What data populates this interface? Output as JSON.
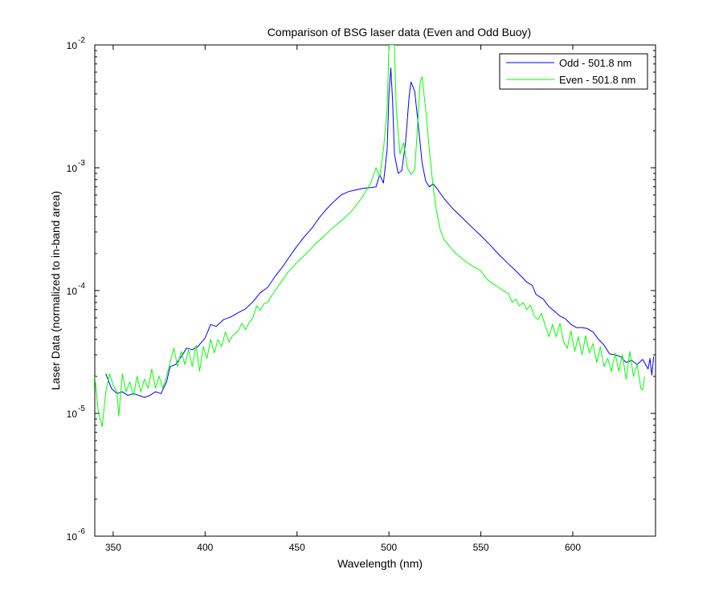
{
  "chart_data": {
    "type": "line",
    "title": "Comparison of BSG laser data (Even and Odd Buoy)",
    "xlabel": "Wavelength (nm)",
    "ylabel": "Laser Data (normalized to in-band area)",
    "xlim": [
      340,
      645
    ],
    "ylim": [
      1e-06,
      0.01
    ],
    "yscale": "log",
    "x_ticks": [
      350,
      400,
      450,
      500,
      550,
      600
    ],
    "y_ticks": [
      {
        "value": 1e-06,
        "base": "10",
        "exp": "-6"
      },
      {
        "value": 1e-05,
        "base": "10",
        "exp": "-5"
      },
      {
        "value": 0.0001,
        "base": "10",
        "exp": "-4"
      },
      {
        "value": 0.001,
        "base": "10",
        "exp": "-3"
      },
      {
        "value": 0.01,
        "base": "10",
        "exp": "-2"
      }
    ],
    "legend_position": "top-right",
    "series": [
      {
        "name": "Odd - 501.8 nm",
        "color": "#0000ff",
        "points": [
          [
            346,
            2.1e-05
          ],
          [
            349,
            1.6e-05
          ],
          [
            352,
            1.45e-05
          ],
          [
            355,
            1.5e-05
          ],
          [
            358,
            1.4e-05
          ],
          [
            361,
            1.45e-05
          ],
          [
            364,
            1.4e-05
          ],
          [
            367,
            1.35e-05
          ],
          [
            370,
            1.4e-05
          ],
          [
            373,
            1.5e-05
          ],
          [
            376,
            1.45e-05
          ],
          [
            379,
            1.8e-05
          ],
          [
            381,
            2.4e-05
          ],
          [
            384,
            2.5e-05
          ],
          [
            387,
            2.9e-05
          ],
          [
            390,
            3.4e-05
          ],
          [
            393,
            3.3e-05
          ],
          [
            396,
            3.5e-05
          ],
          [
            400,
            4.1e-05
          ],
          [
            403,
            5.3e-05
          ],
          [
            406,
            5.1e-05
          ],
          [
            410,
            5.8e-05
          ],
          [
            414,
            6.1e-05
          ],
          [
            418,
            6.6e-05
          ],
          [
            422,
            7.1e-05
          ],
          [
            426,
            8.1e-05
          ],
          [
            430,
            9.6e-05
          ],
          [
            434,
            0.000106
          ],
          [
            438,
            0.00013
          ],
          [
            442,
            0.000155
          ],
          [
            446,
            0.00019
          ],
          [
            450,
            0.00023
          ],
          [
            454,
            0.000275
          ],
          [
            458,
            0.00032
          ],
          [
            462,
            0.00039
          ],
          [
            466,
            0.00046
          ],
          [
            470,
            0.00053
          ],
          [
            474,
            0.0006
          ],
          [
            478,
            0.00064
          ],
          [
            482,
            0.00066
          ],
          [
            486,
            0.00068
          ],
          [
            490,
            0.00069
          ],
          [
            493,
            0.0007
          ],
          [
            495,
            0.00088
          ],
          [
            497,
            0.00075
          ],
          [
            499,
            0.0014
          ],
          [
            500,
            0.004
          ],
          [
            501,
            0.0065
          ],
          [
            502,
            0.0035
          ],
          [
            503,
            0.0013
          ],
          [
            505,
            0.0009
          ],
          [
            507,
            0.00095
          ],
          [
            509,
            0.0016
          ],
          [
            511,
            0.0038
          ],
          [
            512,
            0.005
          ],
          [
            514,
            0.0042
          ],
          [
            516,
            0.0022
          ],
          [
            518,
            0.0011
          ],
          [
            520,
            0.00078
          ],
          [
            522,
            0.0007
          ],
          [
            524,
            0.00074
          ],
          [
            526,
            0.00068
          ],
          [
            530,
            0.00056
          ],
          [
            535,
            0.00046
          ],
          [
            540,
            0.00039
          ],
          [
            545,
            0.00033
          ],
          [
            550,
            0.00028
          ],
          [
            555,
            0.000235
          ],
          [
            560,
            0.000195
          ],
          [
            565,
            0.000165
          ],
          [
            570,
            0.00014
          ],
          [
            575,
            0.000117
          ],
          [
            578,
            0.00011
          ],
          [
            580,
            9.3e-05
          ],
          [
            584,
            8.5e-05
          ],
          [
            587,
            7.4e-05
          ],
          [
            590,
            6.8e-05
          ],
          [
            593,
            6.2e-05
          ],
          [
            596,
            5.9e-05
          ],
          [
            599,
            5.3e-05
          ],
          [
            602,
            5e-05
          ],
          [
            605,
            5e-05
          ],
          [
            608,
            4.9e-05
          ],
          [
            611,
            4.6e-05
          ],
          [
            614,
            4e-05
          ],
          [
            617,
            3.6e-05
          ],
          [
            620,
            3.05e-05
          ],
          [
            623,
            3e-05
          ],
          [
            626,
            2.9e-05
          ],
          [
            629,
            2.6e-05
          ],
          [
            632,
            2.7e-05
          ],
          [
            635,
            2.5e-05
          ],
          [
            638,
            2.75e-05
          ],
          [
            641,
            2.3e-05
          ],
          [
            642,
            2.8e-05
          ],
          [
            643,
            2.05e-05
          ],
          [
            644,
            2.9e-05
          ]
        ]
      },
      {
        "name": "Even - 501.8 nm",
        "color": "#00ff00",
        "points": [
          [
            340,
            2e-05
          ],
          [
            342,
            1e-05
          ],
          [
            344,
            7.8e-06
          ],
          [
            346,
            1.5e-05
          ],
          [
            348,
            2.1e-05
          ],
          [
            350,
            1.7e-05
          ],
          [
            352,
            1.5e-05
          ],
          [
            353,
            9.5e-06
          ],
          [
            355,
            2.1e-05
          ],
          [
            357,
            1.5e-05
          ],
          [
            359,
            1.8e-05
          ],
          [
            361,
            1.4e-05
          ],
          [
            363,
            2e-05
          ],
          [
            365,
            1.5e-05
          ],
          [
            367,
            1.9e-05
          ],
          [
            369,
            1.6e-05
          ],
          [
            371,
            2.3e-05
          ],
          [
            373,
            1.6e-05
          ],
          [
            375,
            2e-05
          ],
          [
            377,
            1.6e-05
          ],
          [
            379,
            2e-05
          ],
          [
            381,
            2.6e-05
          ],
          [
            383,
            3.4e-05
          ],
          [
            385,
            2.4e-05
          ],
          [
            387,
            3.2e-05
          ],
          [
            389,
            2.5e-05
          ],
          [
            391,
            3.3e-05
          ],
          [
            393,
            2.4e-05
          ],
          [
            395,
            3.6e-05
          ],
          [
            397,
            2.2e-05
          ],
          [
            399,
            3.5e-05
          ],
          [
            401,
            2.8e-05
          ],
          [
            403,
            4e-05
          ],
          [
            405,
            3.1e-05
          ],
          [
            407,
            4e-05
          ],
          [
            409,
            3.5e-05
          ],
          [
            411,
            4.6e-05
          ],
          [
            413,
            3.8e-05
          ],
          [
            415,
            4.3e-05
          ],
          [
            418,
            4.7e-05
          ],
          [
            420,
            5.4e-05
          ],
          [
            422,
            4.8e-05
          ],
          [
            424,
            5.5e-05
          ],
          [
            426,
            6e-05
          ],
          [
            428,
            7.5e-05
          ],
          [
            430,
            6.9e-05
          ],
          [
            432,
            7.8e-05
          ],
          [
            434,
            8e-05
          ],
          [
            436,
            9e-05
          ],
          [
            440,
            0.00011
          ],
          [
            445,
            0.00014
          ],
          [
            450,
            0.00017
          ],
          [
            455,
            0.0002
          ],
          [
            460,
            0.00024
          ],
          [
            465,
            0.00028
          ],
          [
            470,
            0.00033
          ],
          [
            475,
            0.00038
          ],
          [
            480,
            0.00045
          ],
          [
            485,
            0.00056
          ],
          [
            490,
            0.00075
          ],
          [
            493,
            0.001
          ],
          [
            495,
            0.00085
          ],
          [
            497,
            0.0014
          ],
          [
            499,
            0.003
          ],
          [
            500,
            0.01
          ],
          [
            503,
            0.01
          ],
          [
            504,
            0.003
          ],
          [
            506,
            0.0013
          ],
          [
            508,
            0.0016
          ],
          [
            510,
            0.001
          ],
          [
            512,
            0.00088
          ],
          [
            514,
            0.00096
          ],
          [
            515,
            0.0016
          ],
          [
            517,
            0.005
          ],
          [
            518,
            0.0055
          ],
          [
            520,
            0.003
          ],
          [
            522,
            0.0014
          ],
          [
            524,
            0.0007
          ],
          [
            526,
            0.00043
          ],
          [
            528,
            0.00031
          ],
          [
            530,
            0.00026
          ],
          [
            535,
            0.00021
          ],
          [
            540,
            0.00018
          ],
          [
            545,
            0.00016
          ],
          [
            550,
            0.000145
          ],
          [
            553,
            0.000125
          ],
          [
            556,
            0.000115
          ],
          [
            559,
            0.000108
          ],
          [
            562,
            0.0001
          ],
          [
            565,
            9.5e-05
          ],
          [
            567,
            8e-05
          ],
          [
            569,
            8.5e-05
          ],
          [
            571,
            7.5e-05
          ],
          [
            573,
            8e-05
          ],
          [
            575,
            7e-05
          ],
          [
            577,
            7.6e-05
          ],
          [
            579,
            6.2e-05
          ],
          [
            581,
            5.8e-05
          ],
          [
            583,
            6.5e-05
          ],
          [
            585,
            5.2e-05
          ],
          [
            587,
            4.2e-05
          ],
          [
            589,
            5.3e-05
          ],
          [
            591,
            4.2e-05
          ],
          [
            593,
            5.4e-05
          ],
          [
            595,
            3.8e-05
          ],
          [
            597,
            3.4e-05
          ],
          [
            599,
            4.7e-05
          ],
          [
            601,
            3.2e-05
          ],
          [
            603,
            4.2e-05
          ],
          [
            605,
            3e-05
          ],
          [
            607,
            4.3e-05
          ],
          [
            609,
            3.1e-05
          ],
          [
            611,
            3.7e-05
          ],
          [
            613,
            2.6e-05
          ],
          [
            615,
            3.5e-05
          ],
          [
            617,
            2.4e-05
          ],
          [
            619,
            2.8e-05
          ],
          [
            621,
            2.2e-05
          ],
          [
            623,
            3.1e-05
          ],
          [
            625,
            2.2e-05
          ],
          [
            627,
            3e-05
          ],
          [
            629,
            1.9e-05
          ],
          [
            631,
            3.2e-05
          ],
          [
            633,
            2e-05
          ],
          [
            635,
            2.5e-05
          ],
          [
            637,
            1.6e-05
          ],
          [
            638,
            1.55e-05
          ],
          [
            639,
            2e-05
          ]
        ]
      }
    ]
  }
}
